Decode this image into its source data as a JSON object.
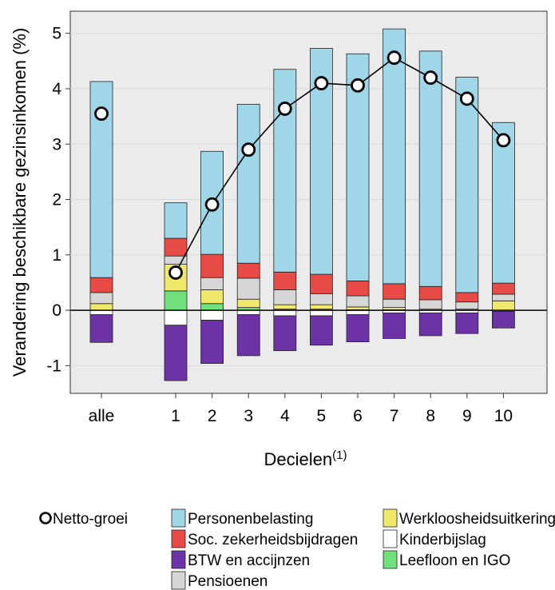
{
  "chart_data": {
    "type": "bar",
    "stacked": true,
    "categories": [
      "alle",
      "1",
      "2",
      "3",
      "4",
      "5",
      "6",
      "7",
      "8",
      "9",
      "10"
    ],
    "xlabel": "Decielen",
    "xlabel_superscript": "(1)",
    "ylabel": "Verandering beschikbare gezinsinkomen (%)",
    "ylim": [
      -1.5,
      5.4
    ],
    "yticks": [
      -1,
      0,
      1,
      2,
      3,
      4,
      5
    ],
    "ytick_labels": [
      "-1",
      "0",
      "1",
      "2",
      "3",
      "4",
      "5"
    ],
    "grid": true,
    "legend_position": "bottom",
    "positive_series": [
      {
        "name": "Leefloon en IGO",
        "color": "#6fe07a",
        "values": [
          0.0,
          0.35,
          0.12,
          0.05,
          0.02,
          0.02,
          0.01,
          0.01,
          0.0,
          0.0,
          0.0
        ]
      },
      {
        "name": "Werkloosheidsuitkering",
        "color": "#efe86b",
        "values": [
          0.12,
          0.48,
          0.25,
          0.15,
          0.08,
          0.08,
          0.05,
          0.04,
          0.02,
          0.02,
          0.17
        ]
      },
      {
        "name": "Pensioenen",
        "color": "#d6d6d6",
        "values": [
          0.2,
          0.15,
          0.22,
          0.38,
          0.27,
          0.2,
          0.2,
          0.15,
          0.17,
          0.13,
          0.12
        ]
      },
      {
        "name": "Soc. zekerheidsbijdragen",
        "color": "#e84b46",
        "values": [
          0.27,
          0.32,
          0.42,
          0.27,
          0.32,
          0.35,
          0.27,
          0.28,
          0.24,
          0.17,
          0.2
        ]
      },
      {
        "name": "Personenbelasting",
        "color": "#9fd6e8",
        "values": [
          3.54,
          0.64,
          1.86,
          2.87,
          3.66,
          4.08,
          4.1,
          4.6,
          4.25,
          3.89,
          2.9
        ]
      }
    ],
    "negative_series": [
      {
        "name": "Kinderbijslag",
        "color": "#ffffff",
        "values": [
          -0.08,
          -0.27,
          -0.18,
          -0.08,
          -0.1,
          -0.1,
          -0.08,
          -0.05,
          -0.05,
          -0.05,
          -0.02
        ]
      },
      {
        "name": "BTW en accijnzen",
        "color": "#6c32a6",
        "values": [
          -0.5,
          -1.0,
          -0.78,
          -0.74,
          -0.63,
          -0.53,
          -0.49,
          -0.46,
          -0.41,
          -0.37,
          -0.3
        ]
      }
    ],
    "netto": {
      "name": "Netto-groei",
      "values": [
        3.55,
        0.68,
        1.91,
        2.9,
        3.64,
        4.1,
        4.06,
        4.56,
        4.2,
        3.82,
        3.07
      ],
      "connect_from_index": 1
    },
    "legend_items": [
      {
        "name": "Netto-groei",
        "kind": "marker"
      },
      {
        "name": "Personenbelasting",
        "color": "#9fd6e8",
        "kind": "box"
      },
      {
        "name": "Werkloosheidsuitkering",
        "color": "#efe86b",
        "kind": "box"
      },
      {
        "name": "Soc. zekerheidsbijdragen",
        "color": "#e84b46",
        "kind": "box"
      },
      {
        "name": "Kinderbijslag",
        "color": "#ffffff",
        "kind": "box"
      },
      {
        "name": "BTW en accijnzen",
        "color": "#6c32a6",
        "kind": "box"
      },
      {
        "name": "Leefloon en IGO",
        "color": "#6fe07a",
        "kind": "box"
      },
      {
        "name": "Pensioenen",
        "color": "#d6d6d6",
        "kind": "box"
      }
    ],
    "panel_background": "#ebebeb"
  }
}
